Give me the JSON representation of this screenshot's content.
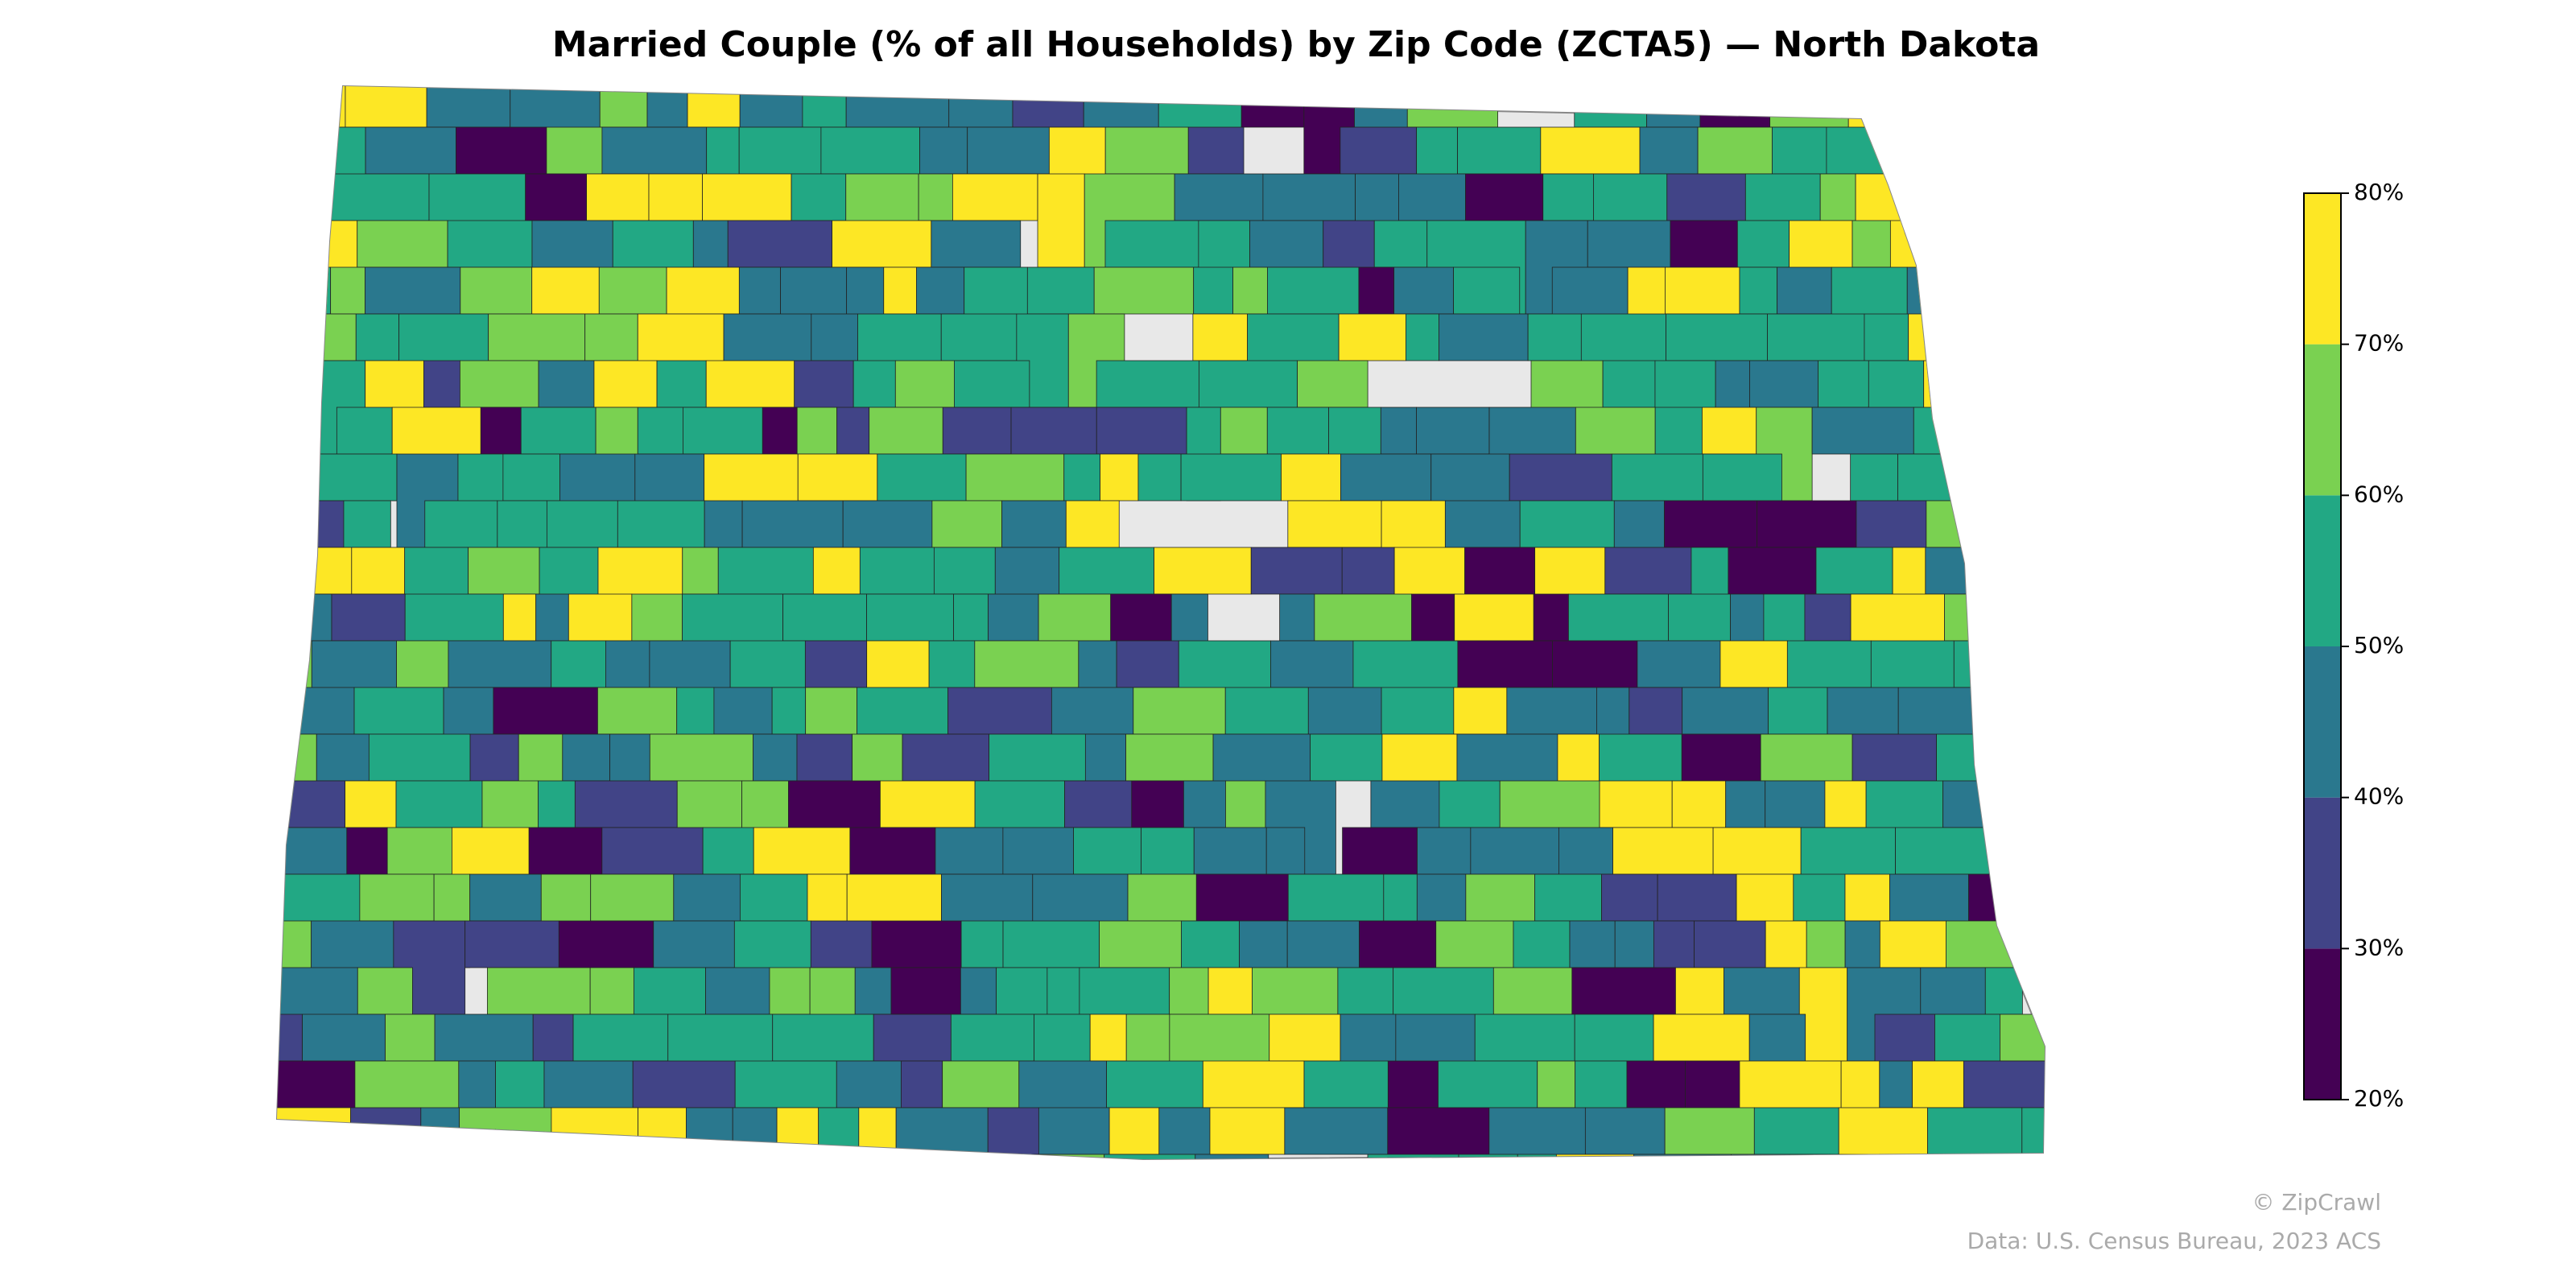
{
  "chart_data": {
    "type": "choropleth",
    "title": "Married Couple (% of all Households) by Zip Code (ZCTA5) — North Dakota",
    "colorbar": {
      "lim": [
        20,
        80
      ],
      "ticks": [
        {
          "value": 20,
          "label": "20%"
        },
        {
          "value": 30,
          "label": "30%"
        },
        {
          "value": 40,
          "label": "40%"
        },
        {
          "value": 50,
          "label": "50%"
        },
        {
          "value": 60,
          "label": "60%"
        },
        {
          "value": 70,
          "label": "70%"
        },
        {
          "value": 80,
          "label": "80%"
        }
      ],
      "colors": [
        "#440154",
        "#414487",
        "#2a788e",
        "#22a884",
        "#7ad151",
        "#fde725"
      ]
    },
    "credit": "© ZipCrawl",
    "source": "Data: U.S. Census Bureau, 2023 ACS"
  }
}
